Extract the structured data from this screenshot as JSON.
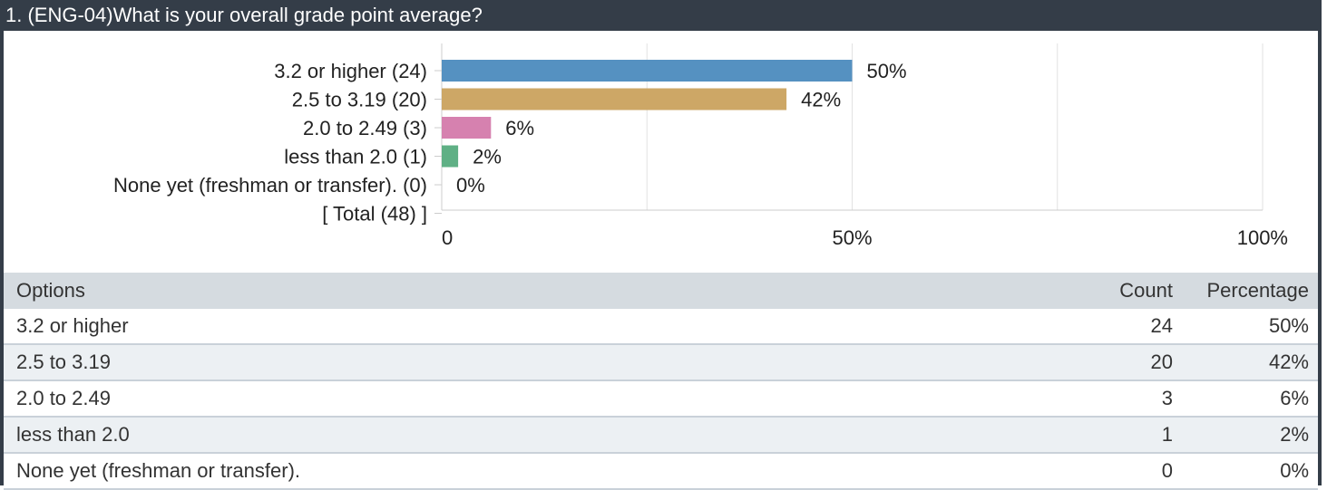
{
  "question": {
    "title": "1. (ENG-04)What is your overall grade point average?"
  },
  "chart_data": {
    "type": "bar",
    "orientation": "horizontal",
    "categories": [
      "3.2 or higher (24)",
      "2.5 to 3.19 (20)",
      "2.0 to 2.49 (3)",
      "less than 2.0 (1)",
      "None yet (freshman or transfer). (0)",
      "[ Total (48) ]"
    ],
    "values": [
      50,
      42,
      6,
      2,
      0,
      null
    ],
    "value_labels": [
      "50%",
      "42%",
      "6%",
      "2%",
      "0%",
      ""
    ],
    "colors": [
      "#5591c1",
      "#cda766",
      "#d681af",
      "#5fb085",
      "#999999",
      "#999999"
    ],
    "xlim": [
      0,
      100
    ],
    "x_ticks": [
      {
        "value": 0,
        "label": "0"
      },
      {
        "value": 50,
        "label": "50%"
      },
      {
        "value": 100,
        "label": "100%"
      }
    ],
    "grid_values": [
      25,
      50,
      75,
      100
    ],
    "grid": true
  },
  "table": {
    "headers": {
      "option": "Options",
      "count": "Count",
      "percentage": "Percentage"
    },
    "rows": [
      {
        "option": "3.2 or higher",
        "count": "24",
        "percentage": "50%"
      },
      {
        "option": "2.5 to 3.19",
        "count": "20",
        "percentage": "42%"
      },
      {
        "option": "2.0 to 2.49",
        "count": "3",
        "percentage": "6%"
      },
      {
        "option": "less than 2.0",
        "count": "1",
        "percentage": "2%"
      },
      {
        "option": "None yet (freshman or transfer).",
        "count": "0",
        "percentage": "0%"
      }
    ]
  }
}
